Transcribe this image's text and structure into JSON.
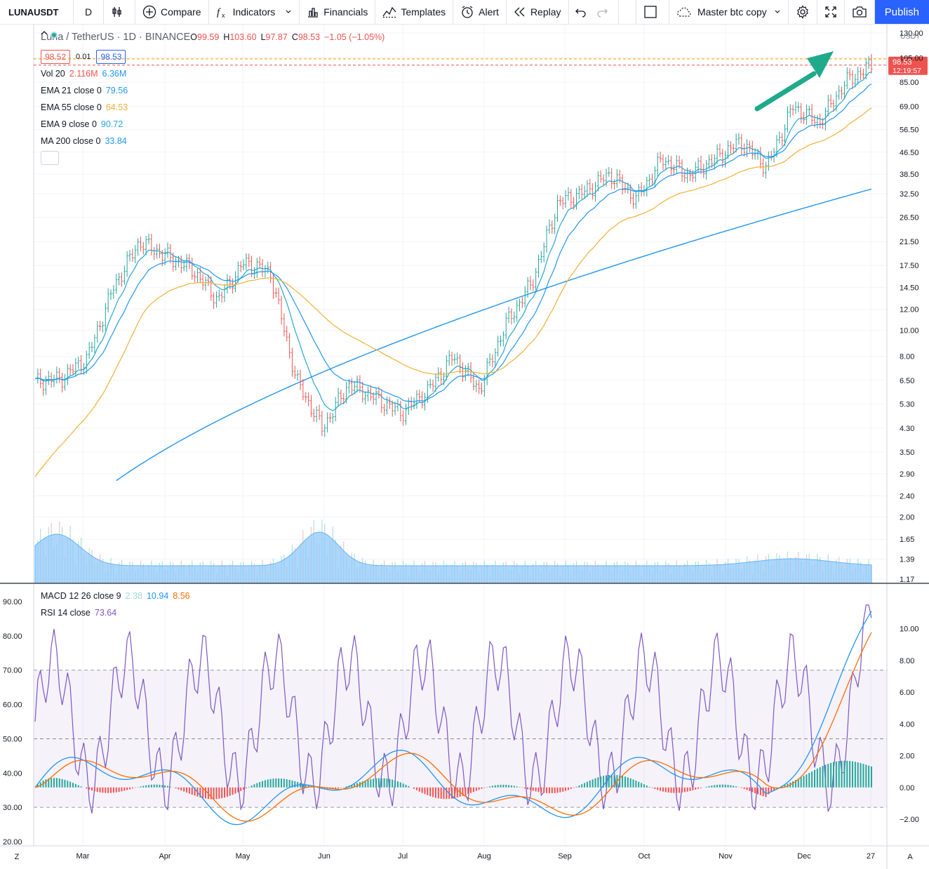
{
  "toolbar": {
    "symbol": "LUNAUSDT",
    "interval": "D",
    "compare": "Compare",
    "indicators": "Indicators",
    "financials": "Financials",
    "templates": "Templates",
    "alert": "Alert",
    "replay": "Replay",
    "layout_name": "Master btc copy",
    "publish": "Publish"
  },
  "legend": {
    "title": "Luna / TetherUS · 1D · BINANCE",
    "ohlc": {
      "o_label": "O",
      "o": "99.59",
      "h_label": "H",
      "h": "103.60",
      "l_label": "L",
      "l": "97.87",
      "c_label": "C",
      "c": "98.53",
      "chg": "−1.05 (−1.05%)"
    },
    "bid": "98.52",
    "spread": "0.01",
    "ask": "98.53",
    "indicators": [
      {
        "name": "Vol 20",
        "v1": "2.116M",
        "v2": "6.36M",
        "c1": "#ef5350",
        "c2": "#2196f3"
      },
      {
        "name": "EMA 21 close 0",
        "v1": "79.56",
        "c1": "#2196f3"
      },
      {
        "name": "EMA 55 close 0",
        "v1": "64.53",
        "c1": "#f2b134"
      },
      {
        "name": "EMA 9 close 0",
        "v1": "90.72",
        "c1": "#26a6d1"
      },
      {
        "name": "MA 200 close 0",
        "v1": "33.84",
        "c1": "#2196f3"
      }
    ],
    "macd": {
      "name": "MACD 12 26 close 9",
      "hist": "2.38",
      "macd": "10.94",
      "signal": "8.56"
    },
    "rsi": {
      "name": "RSI 14 close",
      "value": "73.64"
    }
  },
  "price_axis": {
    "currency": "USDT",
    "ticks": [
      "130.00",
      "105.00",
      "85.00",
      "69.00",
      "56.50",
      "46.50",
      "38.50",
      "32.50",
      "26.50",
      "21.50",
      "17.50",
      "14.50",
      "12.00",
      "10.00",
      "8.00",
      "6.50",
      "5.30",
      "4.30",
      "3.50",
      "2.90",
      "2.40",
      "2.00",
      "1.65",
      "1.39",
      "1.17"
    ],
    "last_price": "98.53",
    "countdown": "12:19:57"
  },
  "macd_axis": {
    "ticks": [
      "10.00",
      "8.00",
      "6.00",
      "4.00",
      "2.00",
      "0.00",
      "−2.00"
    ]
  },
  "rsi_axis": {
    "ticks": [
      "90.00",
      "80.00",
      "70.00",
      "60.00",
      "50.00",
      "40.00",
      "30.00",
      "20.00"
    ]
  },
  "time_axis": {
    "ticks": [
      "Mar",
      "Apr",
      "May",
      "Jun",
      "Jul",
      "Aug",
      "Sep",
      "Oct",
      "Nov",
      "Dec",
      "27"
    ]
  },
  "corner_left": "Z",
  "corner_right": "A",
  "colors": {
    "up": "#26a69a",
    "down": "#ef5350",
    "ema21": "#2196f3",
    "ema55": "#f2b134",
    "ema9": "#26a6d1",
    "ma200": "#2196f3",
    "rsi": "#7e57c2",
    "macd": "#2196f3",
    "signal": "#ff6d00",
    "volume_ma": "#90caf9",
    "arrow": "#1faa8c",
    "accent": "#2962ff"
  },
  "chart_data": {
    "type": "candlestick",
    "title": "Luna / TetherUS · 1D · BINANCE",
    "x_ticks": [
      "Mar",
      "Apr",
      "May",
      "Jun",
      "Jul",
      "Aug",
      "Sep",
      "Oct",
      "Nov",
      "Dec",
      "27"
    ],
    "y_scale": "log",
    "ylim": [
      1.17,
      130
    ],
    "close_approx": [
      {
        "t": "Feb 20",
        "close": 6.4
      },
      {
        "t": "Mar 1",
        "close": 6.6
      },
      {
        "t": "Mar 8",
        "close": 7.9
      },
      {
        "t": "Mar 15",
        "close": 14.5
      },
      {
        "t": "Mar 20",
        "close": 21.5
      },
      {
        "t": "Apr 1",
        "close": 19.0
      },
      {
        "t": "Apr 15",
        "close": 17.0
      },
      {
        "t": "Apr 25",
        "close": 13.0
      },
      {
        "t": "May 1",
        "close": 18.0
      },
      {
        "t": "May 15",
        "close": 16.5
      },
      {
        "t": "May 19",
        "close": 6.5
      },
      {
        "t": "May 22",
        "close": 4.3
      },
      {
        "t": "Jun 1",
        "close": 6.3
      },
      {
        "t": "Jun 15",
        "close": 5.6
      },
      {
        "t": "Jun 25",
        "close": 4.9
      },
      {
        "t": "Jul 5",
        "close": 5.9
      },
      {
        "t": "Jul 12",
        "close": 8.0
      },
      {
        "t": "Jul 20",
        "close": 6.0
      },
      {
        "t": "Aug 1",
        "close": 10.5
      },
      {
        "t": "Aug 10",
        "close": 15.0
      },
      {
        "t": "Aug 20",
        "close": 30.0
      },
      {
        "t": "Sep 1",
        "close": 33.0
      },
      {
        "t": "Sep 10",
        "close": 38.5
      },
      {
        "t": "Sep 20",
        "close": 31.0
      },
      {
        "t": "Oct 1",
        "close": 44.0
      },
      {
        "t": "Oct 15",
        "close": 38.0
      },
      {
        "t": "Nov 1",
        "close": 44.0
      },
      {
        "t": "Nov 10",
        "close": 51.0
      },
      {
        "t": "Nov 20",
        "close": 41.0
      },
      {
        "t": "Dec 1",
        "close": 69.0
      },
      {
        "t": "Dec 10",
        "close": 60.0
      },
      {
        "t": "Dec 20",
        "close": 85.0
      },
      {
        "t": "Dec 27",
        "close": 98.53
      }
    ],
    "ema21_last": 79.56,
    "ema55_last": 64.53,
    "ema9_last": 90.72,
    "ma200_last": 33.84,
    "rsi": {
      "ylim": [
        20,
        90
      ],
      "bands": [
        30,
        50,
        70
      ],
      "last": 73.64
    },
    "macd": {
      "ylim": [
        -2,
        11
      ],
      "last_macd": 10.94,
      "last_signal": 8.56,
      "last_hist": 2.38
    }
  }
}
